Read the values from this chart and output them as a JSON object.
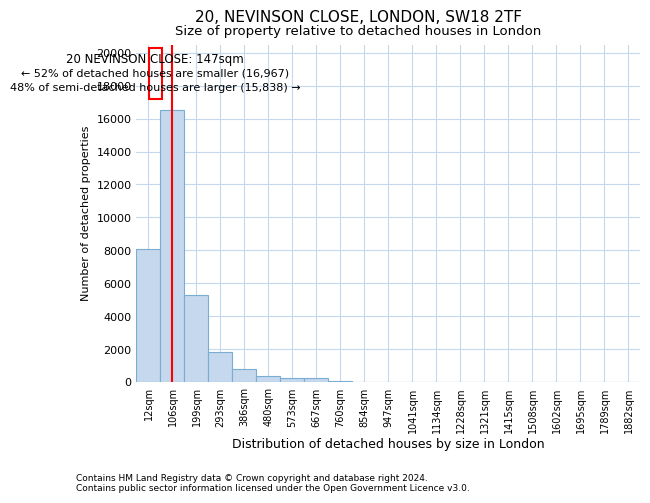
{
  "title1": "20, NEVINSON CLOSE, LONDON, SW18 2TF",
  "title2": "Size of property relative to detached houses in London",
  "xlabel": "Distribution of detached houses by size in London",
  "ylabel": "Number of detached properties",
  "categories": [
    "12sqm",
    "106sqm",
    "199sqm",
    "293sqm",
    "386sqm",
    "480sqm",
    "573sqm",
    "667sqm",
    "760sqm",
    "854sqm",
    "947sqm",
    "1041sqm",
    "1134sqm",
    "1228sqm",
    "1321sqm",
    "1415sqm",
    "1508sqm",
    "1602sqm",
    "1695sqm",
    "1789sqm",
    "1882sqm"
  ],
  "values": [
    8100,
    16500,
    5300,
    1800,
    800,
    350,
    250,
    250,
    50,
    0,
    0,
    0,
    0,
    0,
    0,
    0,
    0,
    0,
    0,
    0,
    0
  ],
  "bar_color": "#c5d8ed",
  "bar_edge_color": "#7aaed0",
  "red_line_x": 1.0,
  "annotation_title": "20 NEVINSON CLOSE: 147sqm",
  "annotation_line1": "← 52% of detached houses are smaller (16,967)",
  "annotation_line2": "48% of semi-detached houses are larger (15,838) →",
  "ylim": [
    0,
    20500
  ],
  "yticks": [
    0,
    2000,
    4000,
    6000,
    8000,
    10000,
    12000,
    14000,
    16000,
    18000,
    20000
  ],
  "footer1": "Contains HM Land Registry data © Crown copyright and database right 2024.",
  "footer2": "Contains public sector information licensed under the Open Government Licence v3.0.",
  "bg_color": "#ffffff",
  "grid_color": "#c5d8ed"
}
